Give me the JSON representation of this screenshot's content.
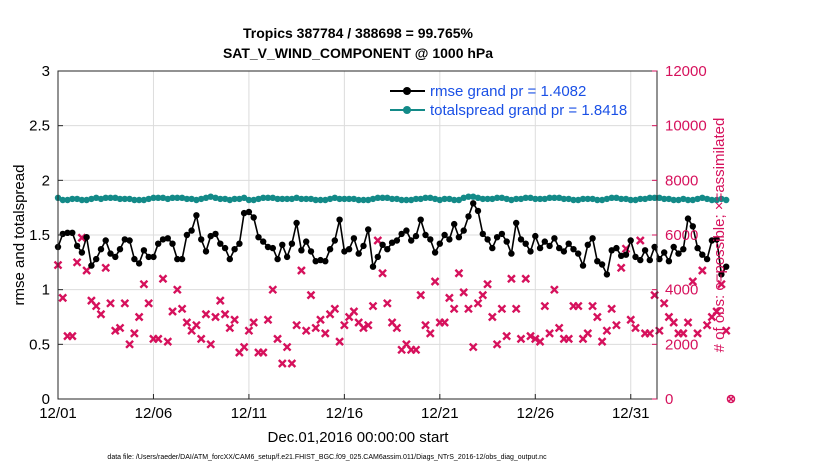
{
  "colors": {
    "rmse": "#000000",
    "spread": "#138a88",
    "obs": "#d6115c",
    "legend_text": "#1a50e6"
  },
  "chart_data": {
    "type": "line",
    "title": "Tropics 387784 / 388698 = 99.765%",
    "subtitle": "SAT_V_WIND_COMPONENT @ 1000 hPa",
    "xlabel": "Dec.01,2016 00:00:00 start",
    "ylabel": "rmse and totalspread",
    "y2label": "# of obs: o=possible; ×=assimilated",
    "footnote": "data file: /Users/raeder/DAI/ATM_forcXX/CAM6_setup/f.e21.FHIST_BGC.f09_025.CAM6assim.011/Diags_NTrS_2016-12/obs_diag_output.nc",
    "xlim": [
      0,
      31.375
    ],
    "ylim": [
      0,
      3
    ],
    "y2lim": [
      0,
      12000
    ],
    "x_step": 0.25,
    "x_tick_values": [
      0,
      5,
      10,
      15,
      20,
      25,
      30
    ],
    "x_tick_labels": [
      "12/01",
      "12/06",
      "12/11",
      "12/16",
      "12/21",
      "12/26",
      "12/31"
    ],
    "y_ticks": [
      "0",
      "0.5",
      "1",
      "1.5",
      "2",
      "2.5",
      "3"
    ],
    "y2_ticks": [
      "0",
      "2000",
      "4000",
      "6000",
      "8000",
      "10000",
      "12000"
    ],
    "series": [
      {
        "name": "rmse grand pr = 1.4082",
        "values": [
          1.39,
          1.51,
          1.52,
          1.52,
          1.4,
          1.34,
          1.48,
          1.22,
          1.28,
          1.37,
          1.45,
          1.33,
          1.3,
          1.37,
          1.46,
          1.45,
          1.28,
          1.24,
          1.36,
          1.3,
          1.3,
          1.42,
          1.46,
          1.47,
          1.42,
          1.28,
          1.28,
          1.5,
          1.54,
          1.68,
          1.46,
          1.35,
          1.49,
          1.51,
          1.42,
          1.38,
          1.28,
          1.37,
          1.42,
          1.7,
          1.71,
          1.66,
          1.48,
          1.44,
          1.39,
          1.38,
          1.28,
          1.41,
          1.3,
          1.42,
          1.61,
          1.36,
          1.44,
          1.35,
          1.26,
          1.27,
          1.26,
          1.37,
          1.45,
          1.64,
          1.35,
          1.37,
          1.47,
          1.33,
          1.4,
          1.55,
          1.21,
          1.3,
          1.41,
          1.37,
          1.43,
          1.45,
          1.51,
          1.54,
          1.45,
          1.49,
          1.64,
          1.5,
          1.46,
          1.34,
          1.42,
          1.5,
          1.46,
          1.6,
          1.48,
          1.54,
          1.67,
          1.79,
          1.72,
          1.51,
          1.46,
          1.38,
          1.48,
          1.51,
          1.44,
          1.33,
          1.61,
          1.46,
          1.42,
          1.35,
          1.49,
          1.38,
          1.44,
          1.4,
          1.47,
          1.38,
          1.35,
          1.42,
          1.37,
          1.33,
          1.22,
          1.41,
          1.47,
          1.26,
          1.23,
          1.14,
          1.36,
          1.38,
          1.31,
          1.32,
          1.45,
          1.3,
          1.27,
          1.36,
          1.27,
          1.39,
          1.28,
          1.34,
          1.26,
          1.39,
          1.33,
          1.37,
          1.65,
          1.58,
          1.38,
          1.32,
          1.28,
          1.45,
          1.46,
          1.14,
          1.21
        ],
        "color": "#000000"
      },
      {
        "name": "totalspread grand pr = 1.8418",
        "values": [
          1.84,
          1.82,
          1.82,
          1.83,
          1.83,
          1.82,
          1.82,
          1.83,
          1.84,
          1.83,
          1.84,
          1.84,
          1.84,
          1.83,
          1.83,
          1.83,
          1.82,
          1.82,
          1.82,
          1.83,
          1.84,
          1.84,
          1.84,
          1.83,
          1.84,
          1.84,
          1.84,
          1.83,
          1.83,
          1.82,
          1.83,
          1.84,
          1.85,
          1.84,
          1.83,
          1.83,
          1.82,
          1.83,
          1.83,
          1.84,
          1.82,
          1.82,
          1.83,
          1.84,
          1.84,
          1.84,
          1.83,
          1.83,
          1.83,
          1.83,
          1.84,
          1.83,
          1.83,
          1.83,
          1.82,
          1.82,
          1.82,
          1.83,
          1.84,
          1.83,
          1.83,
          1.83,
          1.83,
          1.82,
          1.82,
          1.82,
          1.83,
          1.84,
          1.84,
          1.84,
          1.83,
          1.83,
          1.82,
          1.82,
          1.82,
          1.83,
          1.83,
          1.84,
          1.84,
          1.83,
          1.82,
          1.83,
          1.83,
          1.82,
          1.82,
          1.84,
          1.85,
          1.85,
          1.84,
          1.83,
          1.83,
          1.83,
          1.84,
          1.84,
          1.83,
          1.82,
          1.83,
          1.83,
          1.84,
          1.84,
          1.83,
          1.83,
          1.83,
          1.84,
          1.84,
          1.84,
          1.83,
          1.83,
          1.82,
          1.82,
          1.83,
          1.83,
          1.83,
          1.82,
          1.82,
          1.83,
          1.84,
          1.84,
          1.83,
          1.83,
          1.82,
          1.82,
          1.83,
          1.83,
          1.84,
          1.84,
          1.84,
          1.83,
          1.83,
          1.82,
          1.82,
          1.83,
          1.82,
          1.82,
          1.83,
          1.84,
          1.83,
          1.82,
          1.82,
          1.83,
          1.82
        ],
        "color": "#138a88"
      }
    ],
    "obs_series": {
      "name": "# of obs (possible / assimilated)",
      "axis": "right",
      "values": [
        4900,
        3700,
        2300,
        2300,
        5000,
        5900,
        4700,
        3600,
        3400,
        3100,
        4800,
        3500,
        2500,
        2600,
        3500,
        2000,
        2400,
        3000,
        4200,
        3500,
        2200,
        2200,
        4400,
        2100,
        3200,
        4000,
        3300,
        2800,
        2500,
        2700,
        2200,
        3100,
        2000,
        3000,
        3600,
        3100,
        2600,
        2900,
        1700,
        1900,
        2500,
        2800,
        1700,
        1700,
        2900,
        4000,
        2200,
        1300,
        1900,
        1300,
        2700,
        4700,
        2500,
        3800,
        2600,
        2900,
        2400,
        3100,
        3300,
        2100,
        2700,
        3000,
        3200,
        2800,
        2600,
        2700,
        3400,
        5800,
        4600,
        3500,
        2800,
        2600,
        1800,
        2000,
        1800,
        1800,
        3800,
        2700,
        2400,
        4300,
        2800,
        2800,
        3700,
        3300,
        4600,
        3900,
        3300,
        1900,
        3500,
        3800,
        4200,
        3000,
        2000,
        3300,
        2300,
        4400,
        3300,
        2200,
        4400,
        2300,
        2200,
        2100,
        3400,
        2400,
        4000,
        2600,
        2200,
        2200,
        3400,
        3400,
        2200,
        2400,
        3400,
        3000,
        2100,
        2500,
        3300,
        2700,
        4800,
        5500,
        2900,
        2600,
        5800,
        2400,
        2400,
        3800,
        2500,
        3500,
        3000,
        2800,
        2400,
        2400,
        2800,
        4300,
        2400,
        4700,
        2700,
        3000,
        3200,
        4200,
        2500
      ],
      "tail_value": 0,
      "color": "#d6115c"
    },
    "legend": {
      "position": "top-right"
    },
    "grid": true
  }
}
